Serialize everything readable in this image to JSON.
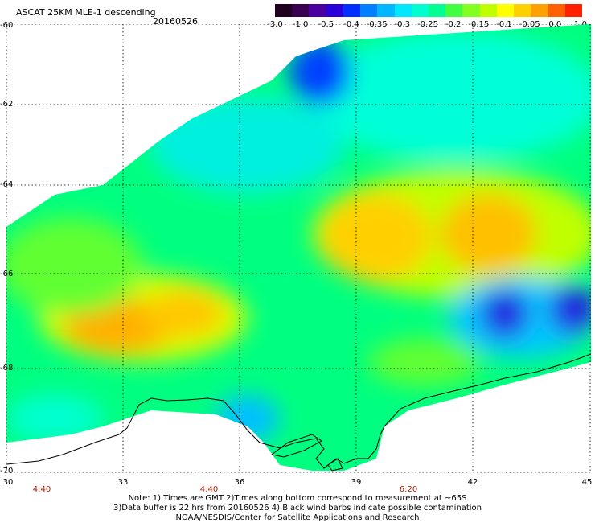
{
  "header": {
    "title": "ASCAT 25KM MLE-1 descending",
    "date": "20160526"
  },
  "colorbar": {
    "labels": [
      "-3.0",
      "-1.0",
      "-0.5",
      "-0.4",
      "-0.35",
      "-0.3",
      "-0.25",
      "-0.2",
      "-0.15",
      "-0.1",
      "-0.05",
      "0.0",
      "1.0"
    ],
    "colors": [
      "#20001e",
      "#3a0050",
      "#4a00a0",
      "#2a00d8",
      "#0030ff",
      "#0080ff",
      "#00b8ff",
      "#00e8ff",
      "#00ffd0",
      "#00ff90",
      "#40ff40",
      "#80ff20",
      "#c0ff00",
      "#ffff00",
      "#ffd000",
      "#ffa000",
      "#ff6000",
      "#ff2000"
    ]
  },
  "axes": {
    "lat_labels": [
      "-60",
      "-62",
      "-64",
      "-66",
      "-68",
      "-70"
    ],
    "lon_labels": [
      "30",
      "33",
      "36",
      "39",
      "42",
      "45"
    ],
    "time_labels": [
      "4:40",
      "4:40",
      "6:20"
    ]
  },
  "notes": {
    "line1": "Note: 1) Times are GMT 2)Times along bottom correspond to measurement at ~65S",
    "line2": "3)Data buffer is 22 hrs from 20160526 4) Black wind barbs indicate possible contamination",
    "line3": "NOAA/NESDIS/Center for Satellite Applications and Research"
  },
  "colors": {
    "coastline": "#000000",
    "grid": "#000000",
    "time_label": "#b22000"
  }
}
